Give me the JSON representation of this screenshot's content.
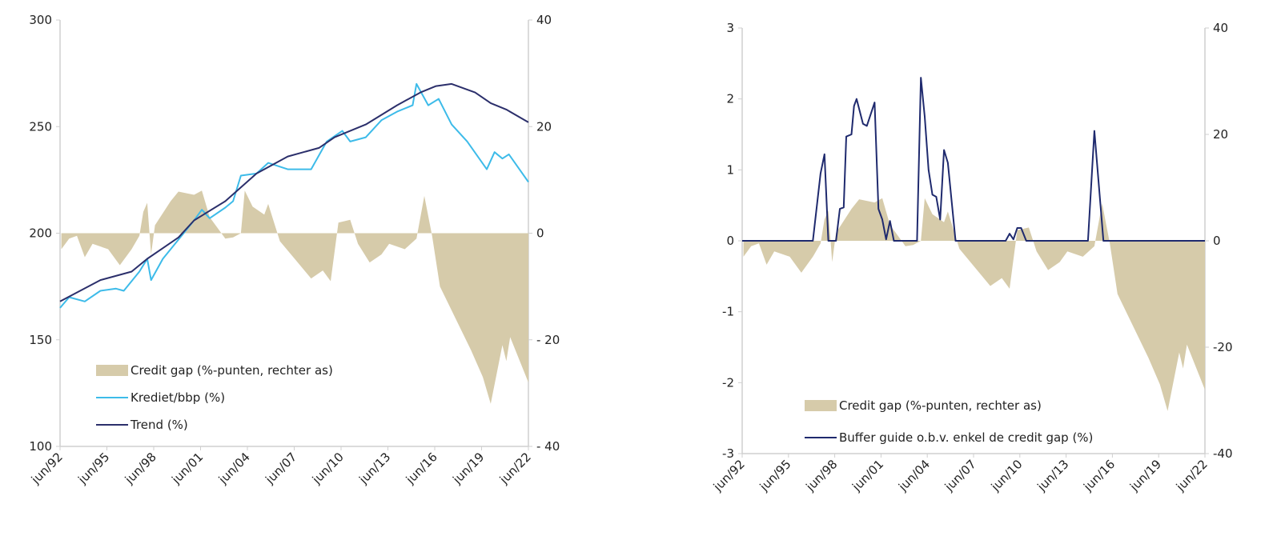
{
  "colors": {
    "credit_gap": "#d6cbaa",
    "krediet_bbp": "#3dbbe9",
    "trend": "#2b2f6b",
    "buffer": "#1f2a6e",
    "axis": "#cfcfcf"
  },
  "chart_data": [
    {
      "type": "area+line",
      "xlabels": [
        "jun/92",
        "jun/95",
        "jun/98",
        "jun/01",
        "jun/04",
        "jun/07",
        "jun/10",
        "jun/13",
        "jun/16",
        "jun/19",
        "jun/22"
      ],
      "xlim": [
        "1992-06",
        "2022-06"
      ],
      "ylim_left": [
        100,
        300
      ],
      "ylim_right": [
        -40,
        40
      ],
      "yticks_left": [
        "300",
        "250",
        "200",
        "150",
        "100"
      ],
      "yticks_right": [
        "40",
        "20",
        "0",
        "- 20",
        "- 40"
      ],
      "legend_placement": "bottom-left",
      "legend": [
        "Credit gap (%-punten, rechter as)",
        "Krediet/bbp (%)",
        "Trend (%)"
      ],
      "series": [
        {
          "name": "Credit gap (%-punten, rechter as)",
          "kind": "area",
          "axis": "right",
          "color": "#d6cbaa",
          "x": [
            "1992-07",
            "1993-01",
            "1993-07",
            "1994-01",
            "1994-07",
            "1995-07",
            "1996-04",
            "1997-01",
            "1997-07",
            "1997-10",
            "1998-01",
            "1998-04",
            "1998-07",
            "1999-07",
            "2000-01",
            "2000-07",
            "2001-01",
            "2001-07",
            "2002-01",
            "2002-07",
            "2003-01",
            "2003-07",
            "2004-01",
            "2004-04",
            "2004-10",
            "2005-07",
            "2005-10",
            "2006-07",
            "2007-07",
            "2008-07",
            "2009-04",
            "2009-10",
            "2010-04",
            "2011-01",
            "2011-07",
            "2012-04",
            "2013-01",
            "2013-07",
            "2014-07",
            "2015-04",
            "2015-10",
            "2016-04",
            "2016-10",
            "2017-10",
            "2018-10",
            "2019-07",
            "2020-01",
            "2020-10",
            "2021-01",
            "2021-04",
            "2022-06"
          ],
          "y": [
            -3,
            -1,
            -0.5,
            -4.5,
            -2,
            -3,
            -6,
            -3,
            -0.5,
            4,
            5.7,
            -4,
            1.5,
            6,
            7.8,
            7.5,
            7.2,
            8,
            3,
            1,
            -1,
            -0.8,
            0,
            8,
            5,
            3.5,
            5.5,
            -1.5,
            -5,
            -8.5,
            -7,
            -9,
            2,
            2.5,
            -2,
            -5.5,
            -4,
            -2,
            -3,
            -1,
            7,
            -0.5,
            -10,
            -16,
            -22,
            -27,
            -32,
            -21,
            -24,
            -19.5,
            -28
          ]
        },
        {
          "name": "Krediet/bbp (%)",
          "kind": "line",
          "axis": "left",
          "color": "#3dbbe9",
          "x": [
            "1992-06",
            "1993-01",
            "1994-01",
            "1995-01",
            "1996-01",
            "1996-07",
            "1997-07",
            "1998-01",
            "1998-04",
            "1999-01",
            "2000-01",
            "2001-01",
            "2001-07",
            "2002-01",
            "2003-01",
            "2003-07",
            "2004-01",
            "2005-01",
            "2005-10",
            "2007-01",
            "2008-01",
            "2008-07",
            "2009-07",
            "2010-07",
            "2011-01",
            "2012-01",
            "2013-01",
            "2014-01",
            "2015-01",
            "2015-04",
            "2016-01",
            "2016-09",
            "2017-07",
            "2018-07",
            "2019-10",
            "2020-04",
            "2020-10",
            "2021-03",
            "2022-06"
          ],
          "y": [
            165,
            170,
            168,
            173,
            174,
            173,
            182,
            188,
            178,
            188,
            197,
            206,
            211,
            207,
            212,
            215,
            227,
            228,
            233,
            230,
            230,
            230,
            243,
            248,
            243,
            245,
            253,
            257,
            260,
            270,
            260,
            263,
            251,
            243,
            230,
            238,
            235,
            237,
            224
          ]
        },
        {
          "name": "Trend (%)",
          "kind": "line",
          "axis": "left",
          "color": "#2b2f6b",
          "x": [
            "1992-06",
            "1995-01",
            "1997-01",
            "1998-01",
            "1999-01",
            "2000-01",
            "2001-01",
            "2003-01",
            "2005-01",
            "2007-01",
            "2009-01",
            "2010-01",
            "2012-01",
            "2014-01",
            "2015-07",
            "2016-07",
            "2017-07",
            "2019-01",
            "2020-01",
            "2021-01",
            "2022-06"
          ],
          "y": [
            168,
            178,
            182,
            188,
            193,
            198,
            206,
            215,
            228,
            236,
            240,
            245,
            251,
            260,
            266,
            269,
            270,
            266,
            261,
            258,
            252
          ]
        }
      ]
    },
    {
      "type": "area+line",
      "xlabels": [
        "jun/92",
        "jun/95",
        "jun/98",
        "jun/01",
        "jun/04",
        "jun/07",
        "jun/10",
        "jun/13",
        "jun/16",
        "jun/19",
        "jun/22"
      ],
      "xlim": [
        "1992-06",
        "2022-06"
      ],
      "ylim_left": [
        -3,
        3
      ],
      "ylim_right": [
        -40,
        40
      ],
      "yticks_left": [
        "3",
        "2",
        "1",
        "0",
        "-1",
        "-2",
        "-3"
      ],
      "yticks_right": [
        "40",
        "20",
        "0",
        "-20",
        "-40"
      ],
      "legend_placement": "bottom-left",
      "legend": [
        "Credit gap (%-punten, rechter as)",
        "Buffer guide o.b.v. enkel de credit gap (%)"
      ],
      "series": [
        {
          "name": "Credit gap (%-punten, rechter as)",
          "kind": "area",
          "axis": "right",
          "color": "#d6cbaa",
          "same_as_chart": 0
        },
        {
          "name": "Buffer guide o.b.v. enkel de credit gap (%)",
          "kind": "line",
          "axis": "left",
          "color": "#1f2a6e",
          "x": [
            "1992-06",
            "1997-01",
            "1997-07",
            "1997-10",
            "1998-01",
            "1998-07",
            "1998-10",
            "1999-01",
            "1999-03",
            "1999-07",
            "1999-09",
            "1999-11",
            "2000-04",
            "2000-07",
            "2001-01",
            "2001-04",
            "2001-07",
            "2001-10",
            "2002-01",
            "2002-04",
            "2003-10",
            "2004-01",
            "2004-04",
            "2004-07",
            "2004-10",
            "2005-01",
            "2005-04",
            "2005-07",
            "2005-10",
            "2006-04",
            "2009-07",
            "2009-10",
            "2010-01",
            "2010-04",
            "2010-07",
            "2010-11",
            "2014-11",
            "2015-04",
            "2015-11",
            "2022-06"
          ],
          "y": [
            0,
            0,
            0.95,
            1.22,
            0,
            0,
            0.45,
            0.47,
            1.47,
            1.5,
            1.9,
            2.0,
            1.65,
            1.62,
            1.95,
            0.45,
            0.3,
            0.02,
            0.28,
            0,
            0,
            2.3,
            1.75,
            1.0,
            0.65,
            0.62,
            0.3,
            1.28,
            1.1,
            0,
            0,
            0.1,
            0.02,
            0.18,
            0.18,
            0,
            0,
            1.55,
            0,
            0
          ]
        }
      ]
    }
  ]
}
